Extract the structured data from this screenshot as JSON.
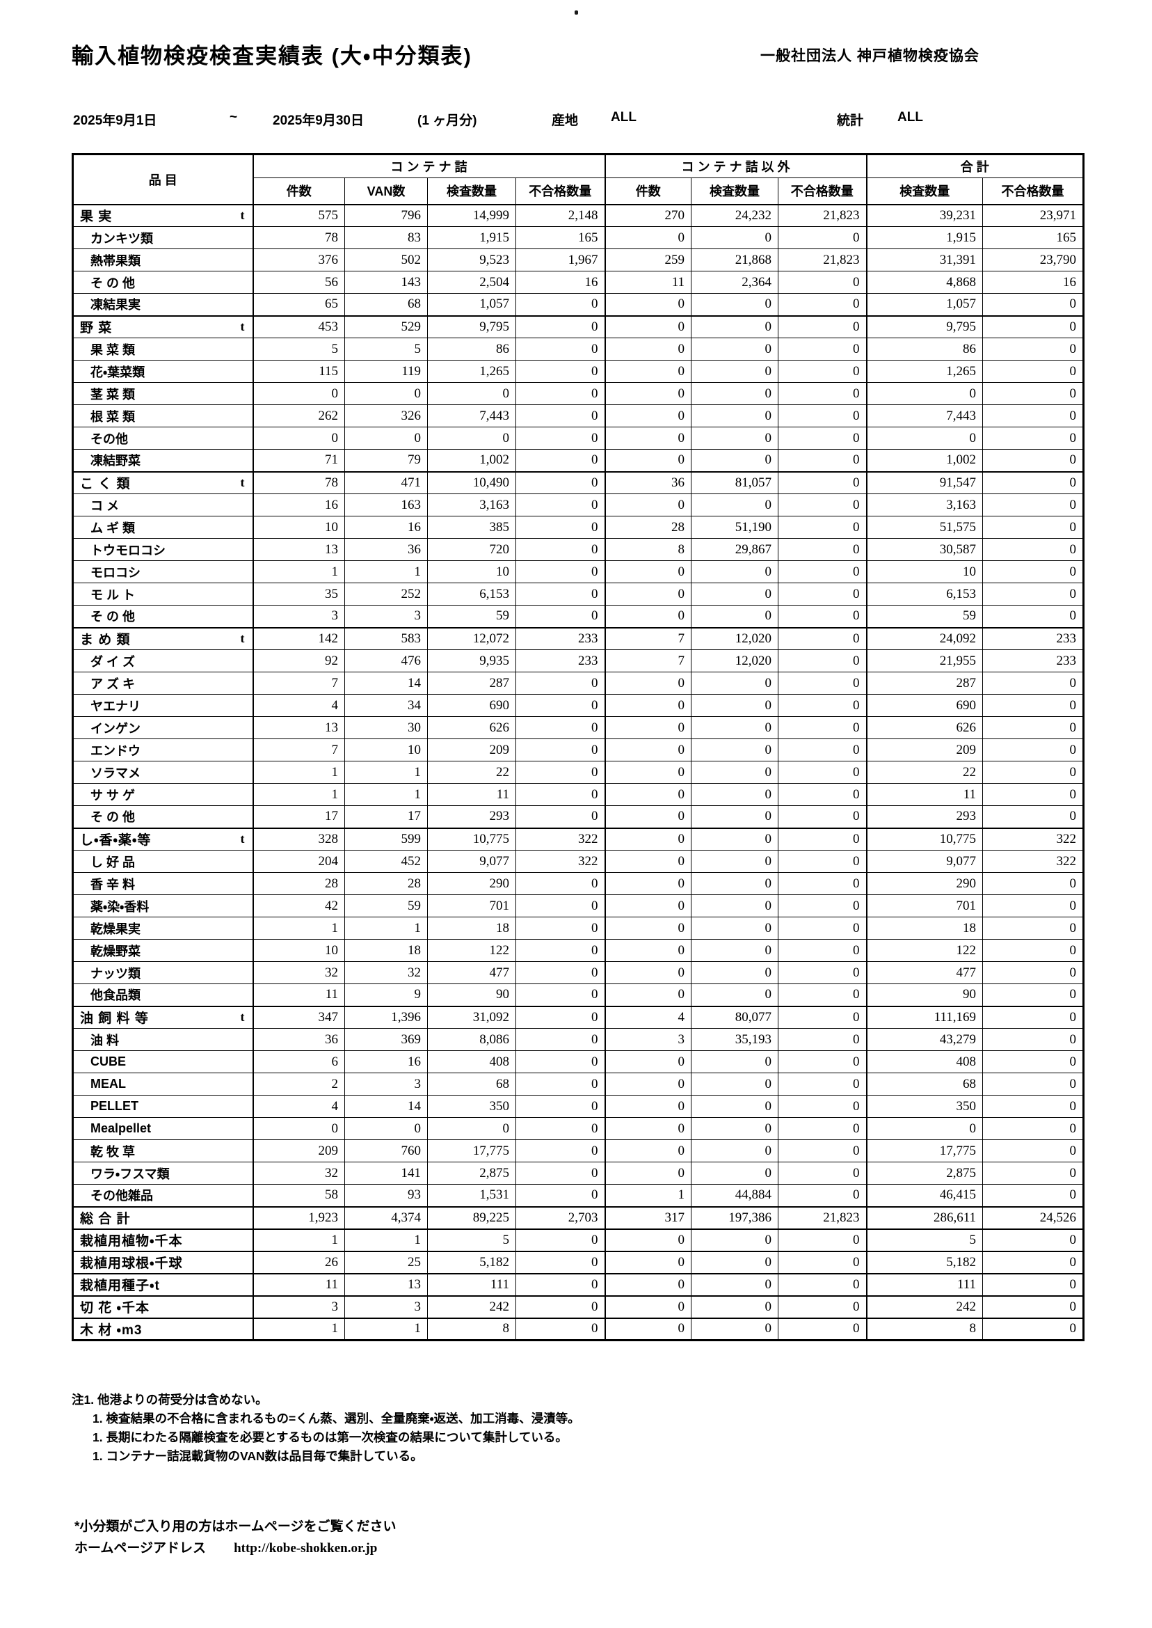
{
  "header": {
    "title": "輸入植物検疫検査実績表 (大・中分類表)",
    "org": "一般社団法人 神戸植物検疫協会",
    "date_from": "2025年9月1日",
    "tilde": "~",
    "date_to": "2025年9月30日",
    "period": "(1 ヶ月分)",
    "origin_label": "産地",
    "origin_value": "ALL",
    "stats_label": "統計",
    "stats_value": "ALL"
  },
  "table": {
    "col_item": "品 目",
    "group1": "コ ン テ ナ 詰",
    "group2": "コ ン テ ナ 詰 以 外",
    "group3": "合  計",
    "sub1": [
      "件数",
      "VAN数",
      "検査数量",
      "不合格数量"
    ],
    "sub2": [
      "件数",
      "検査数量",
      "不合格数量"
    ],
    "sub3": [
      "検査数量",
      "不合格数量"
    ],
    "rows": [
      {
        "label": "果 実",
        "unit": "t",
        "section": true,
        "v": [
          "575",
          "796",
          "14,999",
          "2,148",
          "270",
          "24,232",
          "21,823",
          "39,231",
          "23,971"
        ]
      },
      {
        "label": "カンキツ類",
        "unit": "",
        "section": false,
        "v": [
          "78",
          "83",
          "1,915",
          "165",
          "0",
          "0",
          "0",
          "1,915",
          "165"
        ]
      },
      {
        "label": "熱帯果類",
        "unit": "",
        "section": false,
        "v": [
          "376",
          "502",
          "9,523",
          "1,967",
          "259",
          "21,868",
          "21,823",
          "31,391",
          "23,790"
        ]
      },
      {
        "label": "そ の 他",
        "unit": "",
        "section": false,
        "v": [
          "56",
          "143",
          "2,504",
          "16",
          "11",
          "2,364",
          "0",
          "4,868",
          "16"
        ]
      },
      {
        "label": "凍結果実",
        "unit": "",
        "section": false,
        "v": [
          "65",
          "68",
          "1,057",
          "0",
          "0",
          "0",
          "0",
          "1,057",
          "0"
        ]
      },
      {
        "label": "野 菜",
        "unit": "t",
        "section": true,
        "v": [
          "453",
          "529",
          "9,795",
          "0",
          "0",
          "0",
          "0",
          "9,795",
          "0"
        ]
      },
      {
        "label": "果 菜 類",
        "unit": "",
        "section": false,
        "v": [
          "5",
          "5",
          "86",
          "0",
          "0",
          "0",
          "0",
          "86",
          "0"
        ]
      },
      {
        "label": "花・葉菜類",
        "unit": "",
        "section": false,
        "v": [
          "115",
          "119",
          "1,265",
          "0",
          "0",
          "0",
          "0",
          "1,265",
          "0"
        ]
      },
      {
        "label": "茎 菜 類",
        "unit": "",
        "section": false,
        "v": [
          "0",
          "0",
          "0",
          "0",
          "0",
          "0",
          "0",
          "0",
          "0"
        ]
      },
      {
        "label": "根 菜 類",
        "unit": "",
        "section": false,
        "v": [
          "262",
          "326",
          "7,443",
          "0",
          "0",
          "0",
          "0",
          "7,443",
          "0"
        ]
      },
      {
        "label": "その他",
        "unit": "",
        "section": false,
        "v": [
          "0",
          "0",
          "0",
          "0",
          "0",
          "0",
          "0",
          "0",
          "0"
        ]
      },
      {
        "label": "凍結野菜",
        "unit": "",
        "section": false,
        "v": [
          "71",
          "79",
          "1,002",
          "0",
          "0",
          "0",
          "0",
          "1,002",
          "0"
        ]
      },
      {
        "label": "こ く 類",
        "unit": "t",
        "section": true,
        "v": [
          "78",
          "471",
          "10,490",
          "0",
          "36",
          "81,057",
          "0",
          "91,547",
          "0"
        ]
      },
      {
        "label": "コ メ",
        "unit": "",
        "section": false,
        "v": [
          "16",
          "163",
          "3,163",
          "0",
          "0",
          "0",
          "0",
          "3,163",
          "0"
        ]
      },
      {
        "label": "ム ギ 類",
        "unit": "",
        "section": false,
        "v": [
          "10",
          "16",
          "385",
          "0",
          "28",
          "51,190",
          "0",
          "51,575",
          "0"
        ]
      },
      {
        "label": "トウモロコシ",
        "unit": "",
        "section": false,
        "v": [
          "13",
          "36",
          "720",
          "0",
          "8",
          "29,867",
          "0",
          "30,587",
          "0"
        ]
      },
      {
        "label": "モロコシ",
        "unit": "",
        "section": false,
        "v": [
          "1",
          "1",
          "10",
          "0",
          "0",
          "0",
          "0",
          "10",
          "0"
        ]
      },
      {
        "label": "モ ル ト",
        "unit": "",
        "section": false,
        "v": [
          "35",
          "252",
          "6,153",
          "0",
          "0",
          "0",
          "0",
          "6,153",
          "0"
        ]
      },
      {
        "label": "そ の 他",
        "unit": "",
        "section": false,
        "v": [
          "3",
          "3",
          "59",
          "0",
          "0",
          "0",
          "0",
          "59",
          "0"
        ]
      },
      {
        "label": "ま め 類",
        "unit": "t",
        "section": true,
        "v": [
          "142",
          "583",
          "12,072",
          "233",
          "7",
          "12,020",
          "0",
          "24,092",
          "233"
        ]
      },
      {
        "label": "ダ イ ズ",
        "unit": "",
        "section": false,
        "v": [
          "92",
          "476",
          "9,935",
          "233",
          "7",
          "12,020",
          "0",
          "21,955",
          "233"
        ]
      },
      {
        "label": "ア ズ キ",
        "unit": "",
        "section": false,
        "v": [
          "7",
          "14",
          "287",
          "0",
          "0",
          "0",
          "0",
          "287",
          "0"
        ]
      },
      {
        "label": "ヤエナリ",
        "unit": "",
        "section": false,
        "v": [
          "4",
          "34",
          "690",
          "0",
          "0",
          "0",
          "0",
          "690",
          "0"
        ]
      },
      {
        "label": "インゲン",
        "unit": "",
        "section": false,
        "v": [
          "13",
          "30",
          "626",
          "0",
          "0",
          "0",
          "0",
          "626",
          "0"
        ]
      },
      {
        "label": "エンドウ",
        "unit": "",
        "section": false,
        "v": [
          "7",
          "10",
          "209",
          "0",
          "0",
          "0",
          "0",
          "209",
          "0"
        ]
      },
      {
        "label": "ソラマメ",
        "unit": "",
        "section": false,
        "v": [
          "1",
          "1",
          "22",
          "0",
          "0",
          "0",
          "0",
          "22",
          "0"
        ]
      },
      {
        "label": "サ サ ゲ",
        "unit": "",
        "section": false,
        "v": [
          "1",
          "1",
          "11",
          "0",
          "0",
          "0",
          "0",
          "11",
          "0"
        ]
      },
      {
        "label": "そ の 他",
        "unit": "",
        "section": false,
        "v": [
          "17",
          "17",
          "293",
          "0",
          "0",
          "0",
          "0",
          "293",
          "0"
        ]
      },
      {
        "label": "し・香・薬・等",
        "unit": "t",
        "section": true,
        "v": [
          "328",
          "599",
          "10,775",
          "322",
          "0",
          "0",
          "0",
          "10,775",
          "322"
        ]
      },
      {
        "label": "し 好 品",
        "unit": "",
        "section": false,
        "v": [
          "204",
          "452",
          "9,077",
          "322",
          "0",
          "0",
          "0",
          "9,077",
          "322"
        ]
      },
      {
        "label": "香 辛 料",
        "unit": "",
        "section": false,
        "v": [
          "28",
          "28",
          "290",
          "0",
          "0",
          "0",
          "0",
          "290",
          "0"
        ]
      },
      {
        "label": "薬・染・香料",
        "unit": "",
        "section": false,
        "v": [
          "42",
          "59",
          "701",
          "0",
          "0",
          "0",
          "0",
          "701",
          "0"
        ]
      },
      {
        "label": "乾燥果実",
        "unit": "",
        "section": false,
        "v": [
          "1",
          "1",
          "18",
          "0",
          "0",
          "0",
          "0",
          "18",
          "0"
        ]
      },
      {
        "label": "乾燥野菜",
        "unit": "",
        "section": false,
        "v": [
          "10",
          "18",
          "122",
          "0",
          "0",
          "0",
          "0",
          "122",
          "0"
        ]
      },
      {
        "label": "ナッツ類",
        "unit": "",
        "section": false,
        "v": [
          "32",
          "32",
          "477",
          "0",
          "0",
          "0",
          "0",
          "477",
          "0"
        ]
      },
      {
        "label": "他食品類",
        "unit": "",
        "section": false,
        "v": [
          "11",
          "9",
          "90",
          "0",
          "0",
          "0",
          "0",
          "90",
          "0"
        ]
      },
      {
        "label": "油 飼 料 等",
        "unit": "t",
        "section": true,
        "v": [
          "347",
          "1,396",
          "31,092",
          "0",
          "4",
          "80,077",
          "0",
          "111,169",
          "0"
        ]
      },
      {
        "label": "油 料",
        "unit": "",
        "section": false,
        "v": [
          "36",
          "369",
          "8,086",
          "0",
          "3",
          "35,193",
          "0",
          "43,279",
          "0"
        ]
      },
      {
        "label": "CUBE",
        "unit": "",
        "section": false,
        "v": [
          "6",
          "16",
          "408",
          "0",
          "0",
          "0",
          "0",
          "408",
          "0"
        ]
      },
      {
        "label": "MEAL",
        "unit": "",
        "section": false,
        "v": [
          "2",
          "3",
          "68",
          "0",
          "0",
          "0",
          "0",
          "68",
          "0"
        ]
      },
      {
        "label": "PELLET",
        "unit": "",
        "section": false,
        "v": [
          "4",
          "14",
          "350",
          "0",
          "0",
          "0",
          "0",
          "350",
          "0"
        ]
      },
      {
        "label": "Mealpellet",
        "unit": "",
        "section": false,
        "v": [
          "0",
          "0",
          "0",
          "0",
          "0",
          "0",
          "0",
          "0",
          "0"
        ]
      },
      {
        "label": "乾 牧 草",
        "unit": "",
        "section": false,
        "v": [
          "209",
          "760",
          "17,775",
          "0",
          "0",
          "0",
          "0",
          "17,775",
          "0"
        ]
      },
      {
        "label": "ワラ・フスマ類",
        "unit": "",
        "section": false,
        "v": [
          "32",
          "141",
          "2,875",
          "0",
          "0",
          "0",
          "0",
          "2,875",
          "0"
        ]
      },
      {
        "label": "その他雑品",
        "unit": "",
        "section": false,
        "v": [
          "58",
          "93",
          "1,531",
          "0",
          "1",
          "44,884",
          "0",
          "46,415",
          "0"
        ]
      },
      {
        "label": "総 合 計",
        "unit": "",
        "section": true,
        "v": [
          "1,923",
          "4,374",
          "89,225",
          "2,703",
          "317",
          "197,386",
          "21,823",
          "286,611",
          "24,526"
        ]
      },
      {
        "label": "栽植用植物・千本",
        "unit": "",
        "section": true,
        "v": [
          "1",
          "1",
          "5",
          "0",
          "0",
          "0",
          "0",
          "5",
          "0"
        ]
      },
      {
        "label": "栽植用球根・千球",
        "unit": "",
        "section": true,
        "v": [
          "26",
          "25",
          "5,182",
          "0",
          "0",
          "0",
          "0",
          "5,182",
          "0"
        ]
      },
      {
        "label": "栽植用種子・t",
        "unit": "",
        "section": true,
        "v": [
          "11",
          "13",
          "111",
          "0",
          "0",
          "0",
          "0",
          "111",
          "0"
        ]
      },
      {
        "label": "切 花 ・千本",
        "unit": "",
        "section": true,
        "v": [
          "3",
          "3",
          "242",
          "0",
          "0",
          "0",
          "0",
          "242",
          "0"
        ]
      },
      {
        "label": "木  材 ・m3",
        "unit": "",
        "section": true,
        "v": [
          "1",
          "1",
          "8",
          "0",
          "0",
          "0",
          "0",
          "8",
          "0"
        ]
      }
    ]
  },
  "notes": [
    "注1. 他港よりの荷受分は含めない。",
    "1. 検査結果の不合格に含まれるもの=くん蒸、選別、全量廃棄・返送、加工消毒、浸漬等。",
    "1. 長期にわたる隔離検査を必要とするものは第一次検査の結果について集計している。",
    "1. コンテナー詰混載貨物のVAN数は品目毎で集計している。"
  ],
  "footer": {
    "line1": "*小分類がご入り用の方はホームページをご覧ください",
    "line2_label": "ホームページアドレス",
    "line2_url": "http://kobe-shokken.or.jp"
  }
}
